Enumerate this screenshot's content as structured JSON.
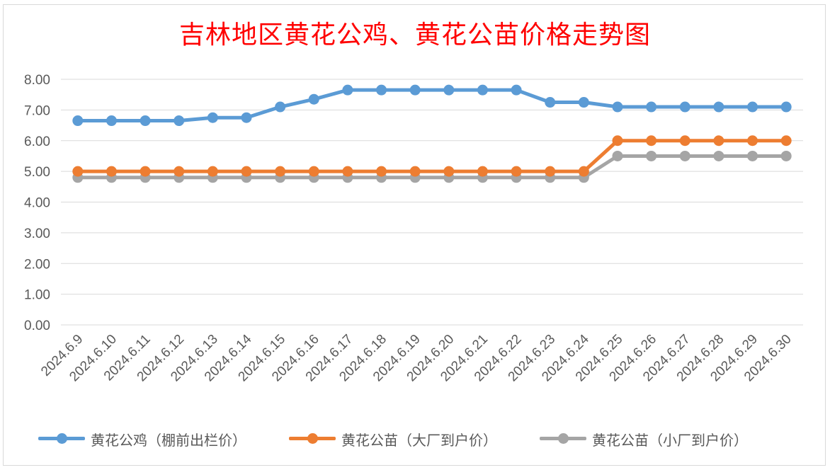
{
  "chart_data": {
    "type": "line",
    "title": "吉林地区黄花公鸡、黄花公苗价格走势图",
    "xlabel": "",
    "ylabel": "",
    "ylim": [
      0,
      8
    ],
    "y_ticks": [
      "0.00",
      "1.00",
      "2.00",
      "3.00",
      "4.00",
      "5.00",
      "6.00",
      "7.00",
      "8.00"
    ],
    "grid": true,
    "legend_position": "bottom",
    "categories": [
      "2024.6.9",
      "2024.6.10",
      "2024.6.11",
      "2024.6.12",
      "2024.6.13",
      "2024.6.14",
      "2024.6.15",
      "2024.6.16",
      "2024.6.17",
      "2024.6.18",
      "2024.6.19",
      "2024.6.20",
      "2024.6.21",
      "2024.6.22",
      "2024.6.23",
      "2024.6.24",
      "2024.6.25",
      "2024.6.26",
      "2024.6.27",
      "2024.6.28",
      "2024.6.29",
      "2024.6.30"
    ],
    "series": [
      {
        "name": "黄花公鸡（棚前出栏价）",
        "color": "#5b9bd5",
        "values": [
          6.65,
          6.65,
          6.65,
          6.65,
          6.75,
          6.75,
          7.1,
          7.35,
          7.65,
          7.65,
          7.65,
          7.65,
          7.65,
          7.65,
          7.25,
          7.25,
          7.1,
          7.1,
          7.1,
          7.1,
          7.1,
          7.1
        ]
      },
      {
        "name": "黄花公苗（大厂到户价）",
        "color": "#ed7d31",
        "values": [
          5.0,
          5.0,
          5.0,
          5.0,
          5.0,
          5.0,
          5.0,
          5.0,
          5.0,
          5.0,
          5.0,
          5.0,
          5.0,
          5.0,
          5.0,
          5.0,
          6.0,
          6.0,
          6.0,
          6.0,
          6.0,
          6.0
        ]
      },
      {
        "name": "黄花公苗（小厂到户价）",
        "color": "#a5a5a5",
        "values": [
          4.8,
          4.8,
          4.8,
          4.8,
          4.8,
          4.8,
          4.8,
          4.8,
          4.8,
          4.8,
          4.8,
          4.8,
          4.8,
          4.8,
          4.8,
          4.8,
          5.5,
          5.5,
          5.5,
          5.5,
          5.5,
          5.5
        ]
      }
    ]
  }
}
